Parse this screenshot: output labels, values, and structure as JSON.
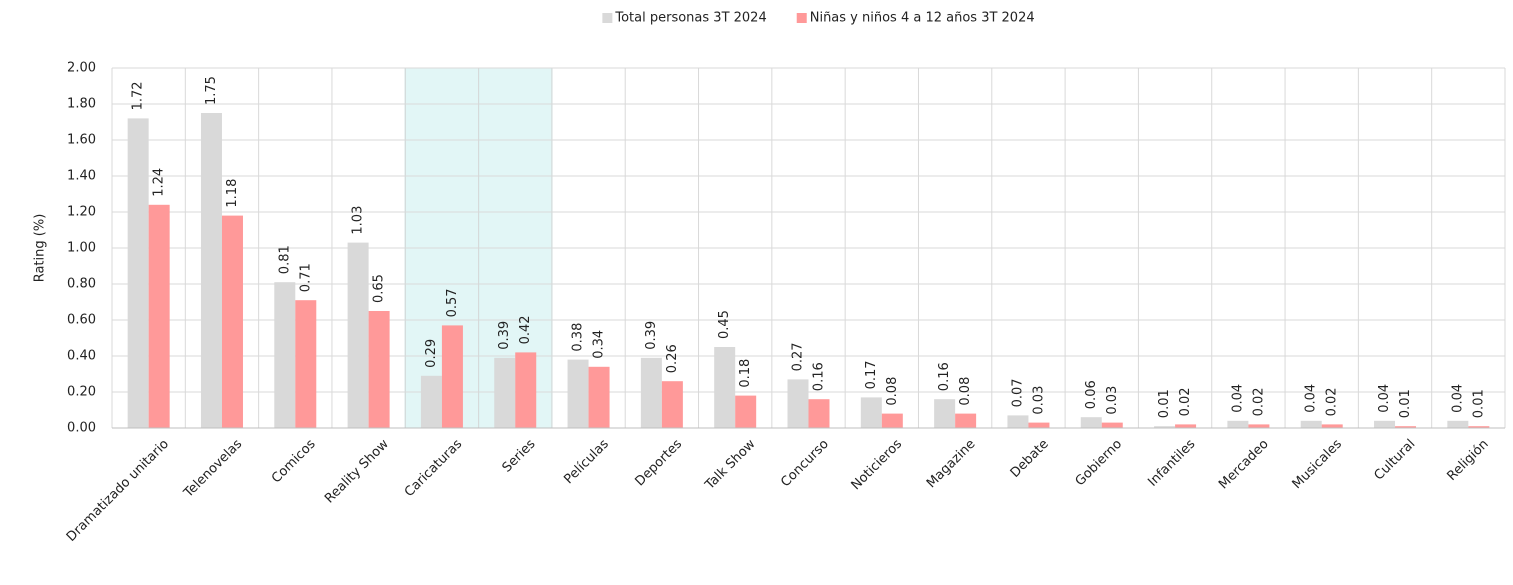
{
  "chart_data": {
    "type": "bar",
    "y_label": "Rating (%)",
    "categories": [
      "Dramatizado unitario",
      "Telenovelas",
      "Comicos",
      "Reality Show",
      "Caricaturas",
      "Series",
      "Películas",
      "Deportes",
      "Talk Show",
      "Concurso",
      "Noticieros",
      "Magazine",
      "Debate",
      "Gobierno",
      "Infantiles",
      "Mercadeo",
      "Musicales",
      "Cultural",
      "Religión"
    ],
    "series": [
      {
        "name": "Total personas 3T 2024",
        "color": "#d9d9d9",
        "values": [
          1.72,
          1.75,
          0.81,
          1.03,
          0.29,
          0.39,
          0.38,
          0.39,
          0.45,
          0.27,
          0.17,
          0.16,
          0.07,
          0.06,
          0.01,
          0.04,
          0.04,
          0.04,
          0.04
        ]
      },
      {
        "name": "Niñas y niños 4 a 12 años 3T 2024",
        "color": "#ff9999",
        "values": [
          1.24,
          1.18,
          0.71,
          0.65,
          0.57,
          0.42,
          0.34,
          0.26,
          0.18,
          0.16,
          0.08,
          0.08,
          0.03,
          0.03,
          0.02,
          0.02,
          0.02,
          0.01,
          0.01
        ]
      }
    ],
    "ylim": [
      0,
      2
    ],
    "yticks": [
      {
        "value": 0,
        "label": "0.00"
      },
      {
        "value": 0.2,
        "label": "0.20"
      },
      {
        "value": 0.4,
        "label": "0.40"
      },
      {
        "value": 0.6,
        "label": "0.60"
      },
      {
        "value": 0.8,
        "label": "0.80"
      },
      {
        "value": 1,
        "label": "1.00"
      },
      {
        "value": 1.2,
        "label": "1.20"
      },
      {
        "value": 1.4,
        "label": "1.40"
      },
      {
        "value": 1.6,
        "label": "1.60"
      },
      {
        "value": 1.8,
        "label": "1.80"
      },
      {
        "value": 2,
        "label": "2.00"
      }
    ],
    "grid": true,
    "legend": "top",
    "highlight_categories": [
      4,
      5
    ],
    "highlight_color": "#e2f6f6"
  }
}
